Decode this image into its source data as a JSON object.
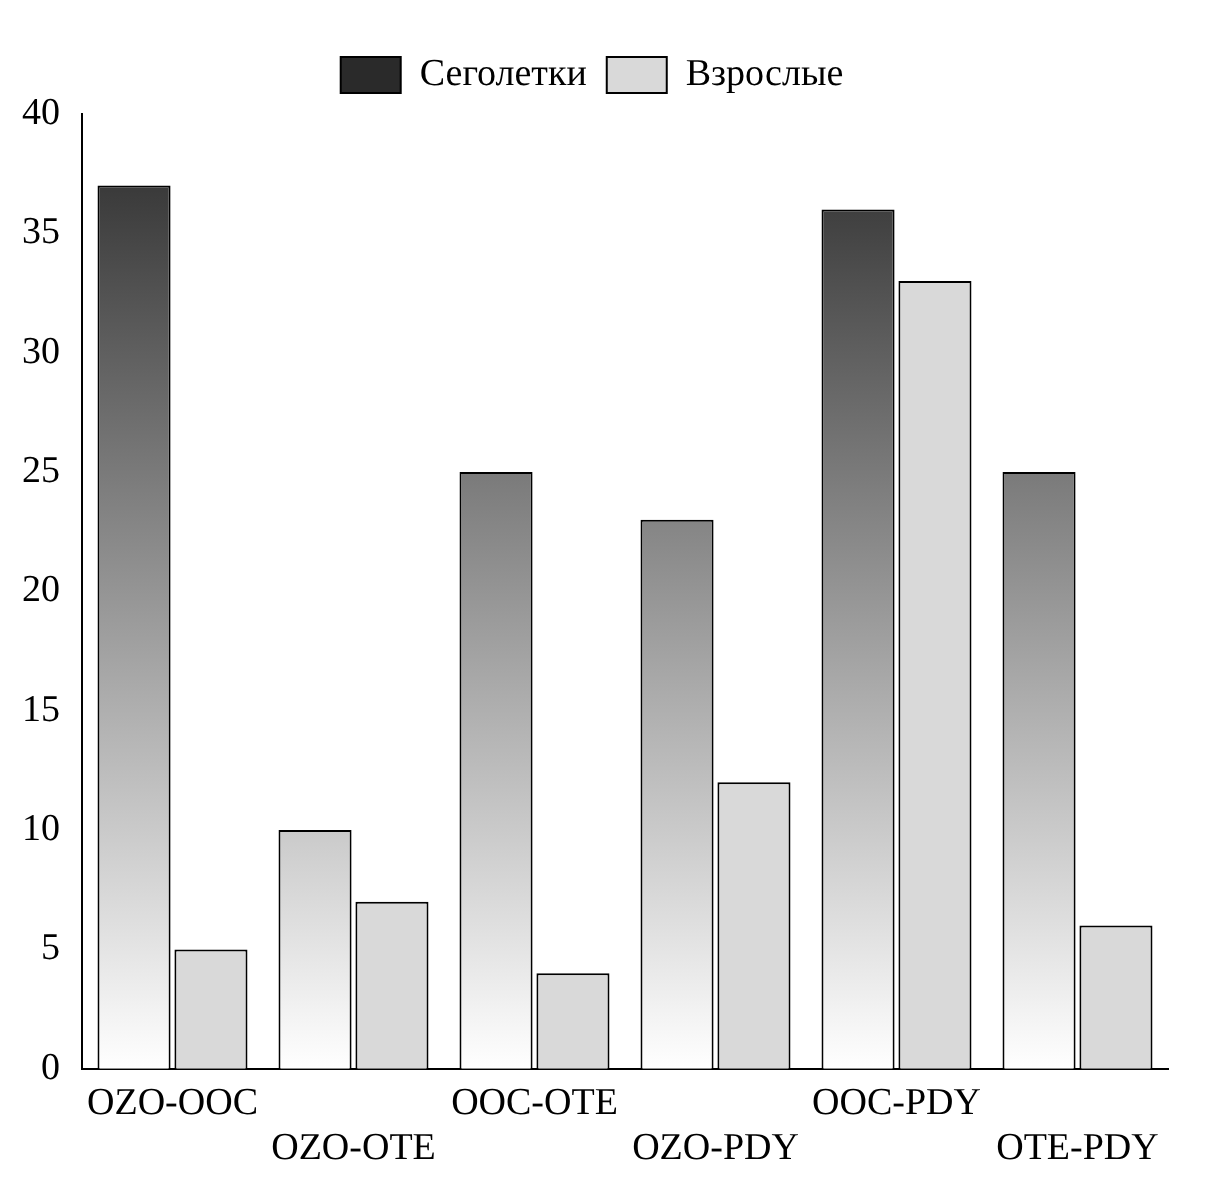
{
  "chart_data": {
    "type": "bar",
    "categories": [
      "OZO-OOC",
      "OZO-OTE",
      "OOC-OTE",
      "OZO-PDY",
      "OOC-PDY",
      "OTE-PDY"
    ],
    "series": [
      {
        "name": "Сеголетки",
        "color": "#2a2a2a",
        "values": [
          37,
          10,
          25,
          23,
          36,
          25
        ]
      },
      {
        "name": "Взрослые",
        "color": "#d9d9d9",
        "values": [
          5,
          7,
          4,
          12,
          33,
          6
        ]
      }
    ],
    "ylim": [
      0,
      40
    ],
    "yticks": [
      0,
      5,
      10,
      15,
      20,
      25,
      30,
      35,
      40
    ],
    "grid": false,
    "legend": "top"
  }
}
